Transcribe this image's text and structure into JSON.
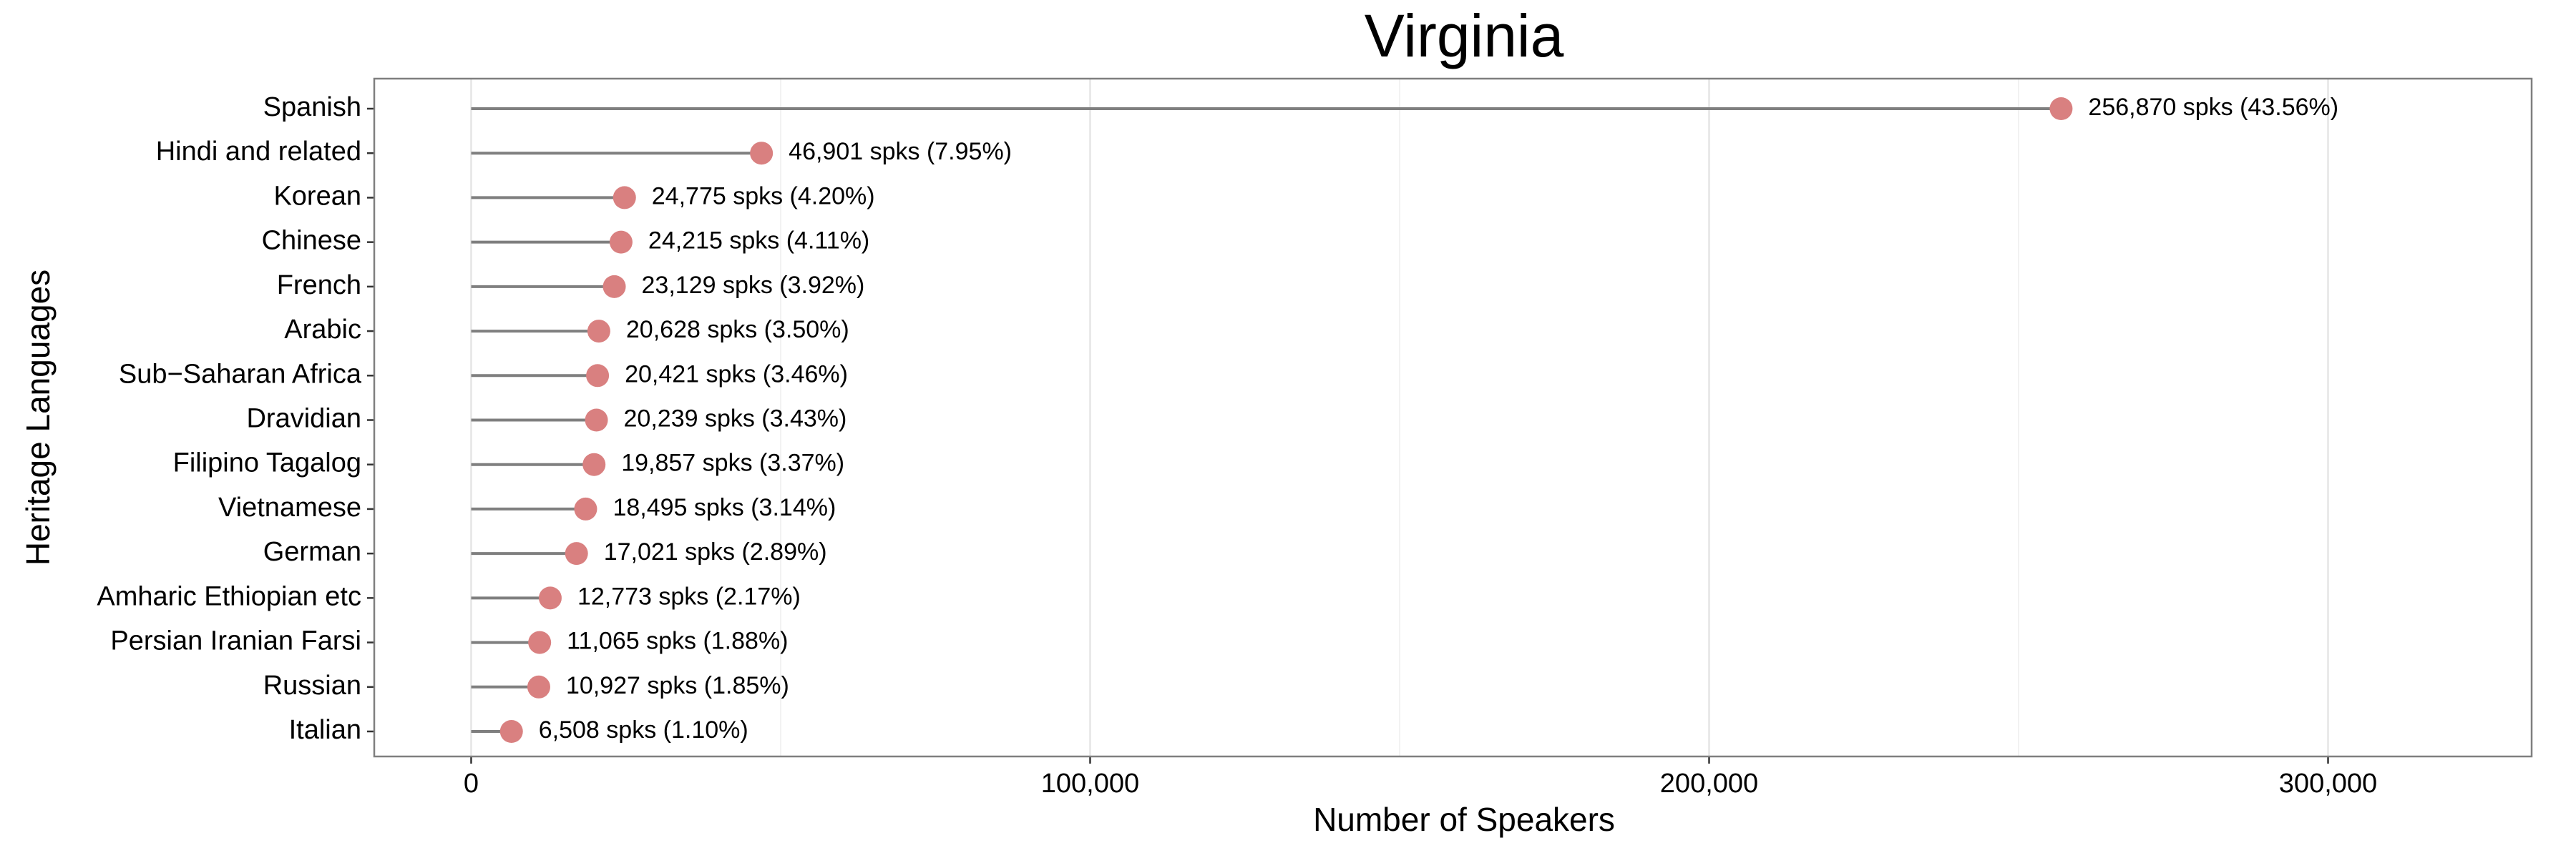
{
  "chart_data": {
    "type": "lollipop",
    "title": "Virginia",
    "x_label": "Number of Speakers",
    "y_label": "Heritage Languages",
    "categories": [
      "Spanish",
      "Hindi and related",
      "Korean",
      "Chinese",
      "French",
      "Arabic",
      "Sub−Saharan Africa",
      "Dravidian",
      "Filipino Tagalog",
      "Vietnamese",
      "German",
      "Amharic Ethiopian etc",
      "Persian Iranian Farsi",
      "Russian",
      "Italian"
    ],
    "values": [
      256870,
      46901,
      24775,
      24215,
      23129,
      20628,
      20421,
      20239,
      19857,
      18495,
      17021,
      12773,
      11065,
      10927,
      6508
    ],
    "value_labels": [
      "256,870 spks (43.56%)",
      "46,901 spks (7.95%)",
      "24,775 spks (4.20%)",
      "24,215 spks (4.11%)",
      "23,129 spks (3.92%)",
      "20,628 spks (3.50%)",
      "20,421 spks (3.46%)",
      "20,239 spks (3.43%)",
      "19,857 spks (3.37%)",
      "18,495 spks (3.14%)",
      "17,021 spks (2.89%)",
      "12,773 spks (2.17%)",
      "11,065 spks (1.88%)",
      "10,927 spks (1.85%)",
      "6,508 spks (1.10%)"
    ],
    "color": "#d98080",
    "stem_color": "#7f7f7f",
    "xlim": [
      -15660,
      332890
    ],
    "xticks": [
      0,
      {
        "value": 100000,
        "label": "100,000"
      },
      {
        "value": 200000,
        "label": "200,000"
      },
      {
        "value": 300000,
        "label": "300,000"
      }
    ],
    "xminorticks": [
      50000,
      150000,
      250000
    ],
    "grid": true
  }
}
